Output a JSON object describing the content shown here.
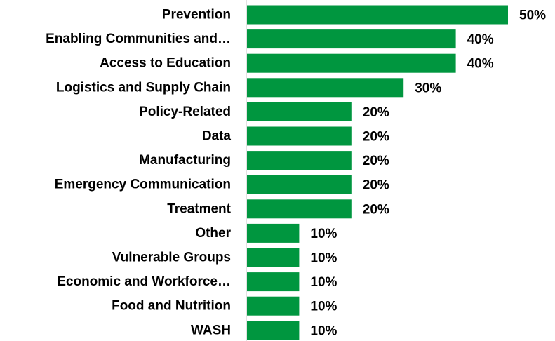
{
  "chart_data": {
    "type": "bar",
    "orientation": "horizontal",
    "title": "",
    "xlabel": "",
    "ylabel": "",
    "categories": [
      "Prevention",
      "Enabling Communities and…",
      "Access to Education",
      "Logistics and Supply Chain",
      "Policy-Related",
      "Data",
      "Manufacturing",
      "Emergency Communication",
      "Treatment",
      "Other ",
      "Vulnerable Groups",
      "Economic and Workforce…",
      "Food and Nutrition",
      "WASH"
    ],
    "values": [
      50,
      40,
      40,
      30,
      20,
      20,
      20,
      20,
      20,
      10,
      10,
      10,
      10,
      10
    ],
    "data_labels": [
      "50%",
      "40%",
      "40%",
      "30%",
      "20%",
      "20%",
      "20%",
      "20%",
      "20%",
      "10%",
      "10%",
      "10%",
      "10%",
      "10%"
    ],
    "xlim": [
      0,
      50
    ],
    "grid": false,
    "legend": "none",
    "bar_color": "#00963F",
    "axis_color": "#D9D9D9"
  }
}
